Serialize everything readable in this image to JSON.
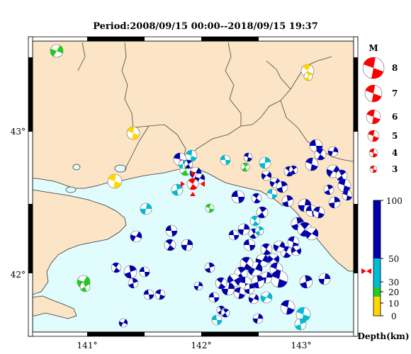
{
  "title": "Period:2008/09/15 00:00--2018/09/15 19:37",
  "axes": {
    "lon_labels": [
      "141°",
      "142°",
      "143°"
    ],
    "lat_labels": [
      "43°",
      "42°"
    ]
  },
  "magnitude_legend": {
    "title": "M",
    "values": [
      "8",
      "7",
      "6",
      "5",
      "4",
      "3"
    ]
  },
  "depth_scale": {
    "label": "Depth(km)",
    "ticks": [
      "100",
      "50",
      "30",
      "20",
      "10",
      "0"
    ],
    "colors": {
      "0-10": "#ffd700",
      "10-20": "#22cc22",
      "20-50": "#00bcd4",
      "50-100": "#0000aa"
    }
  },
  "colors": {
    "land": "#fce5c6",
    "sea": "#e0fcfc",
    "highlight": "#ff0000"
  }
}
